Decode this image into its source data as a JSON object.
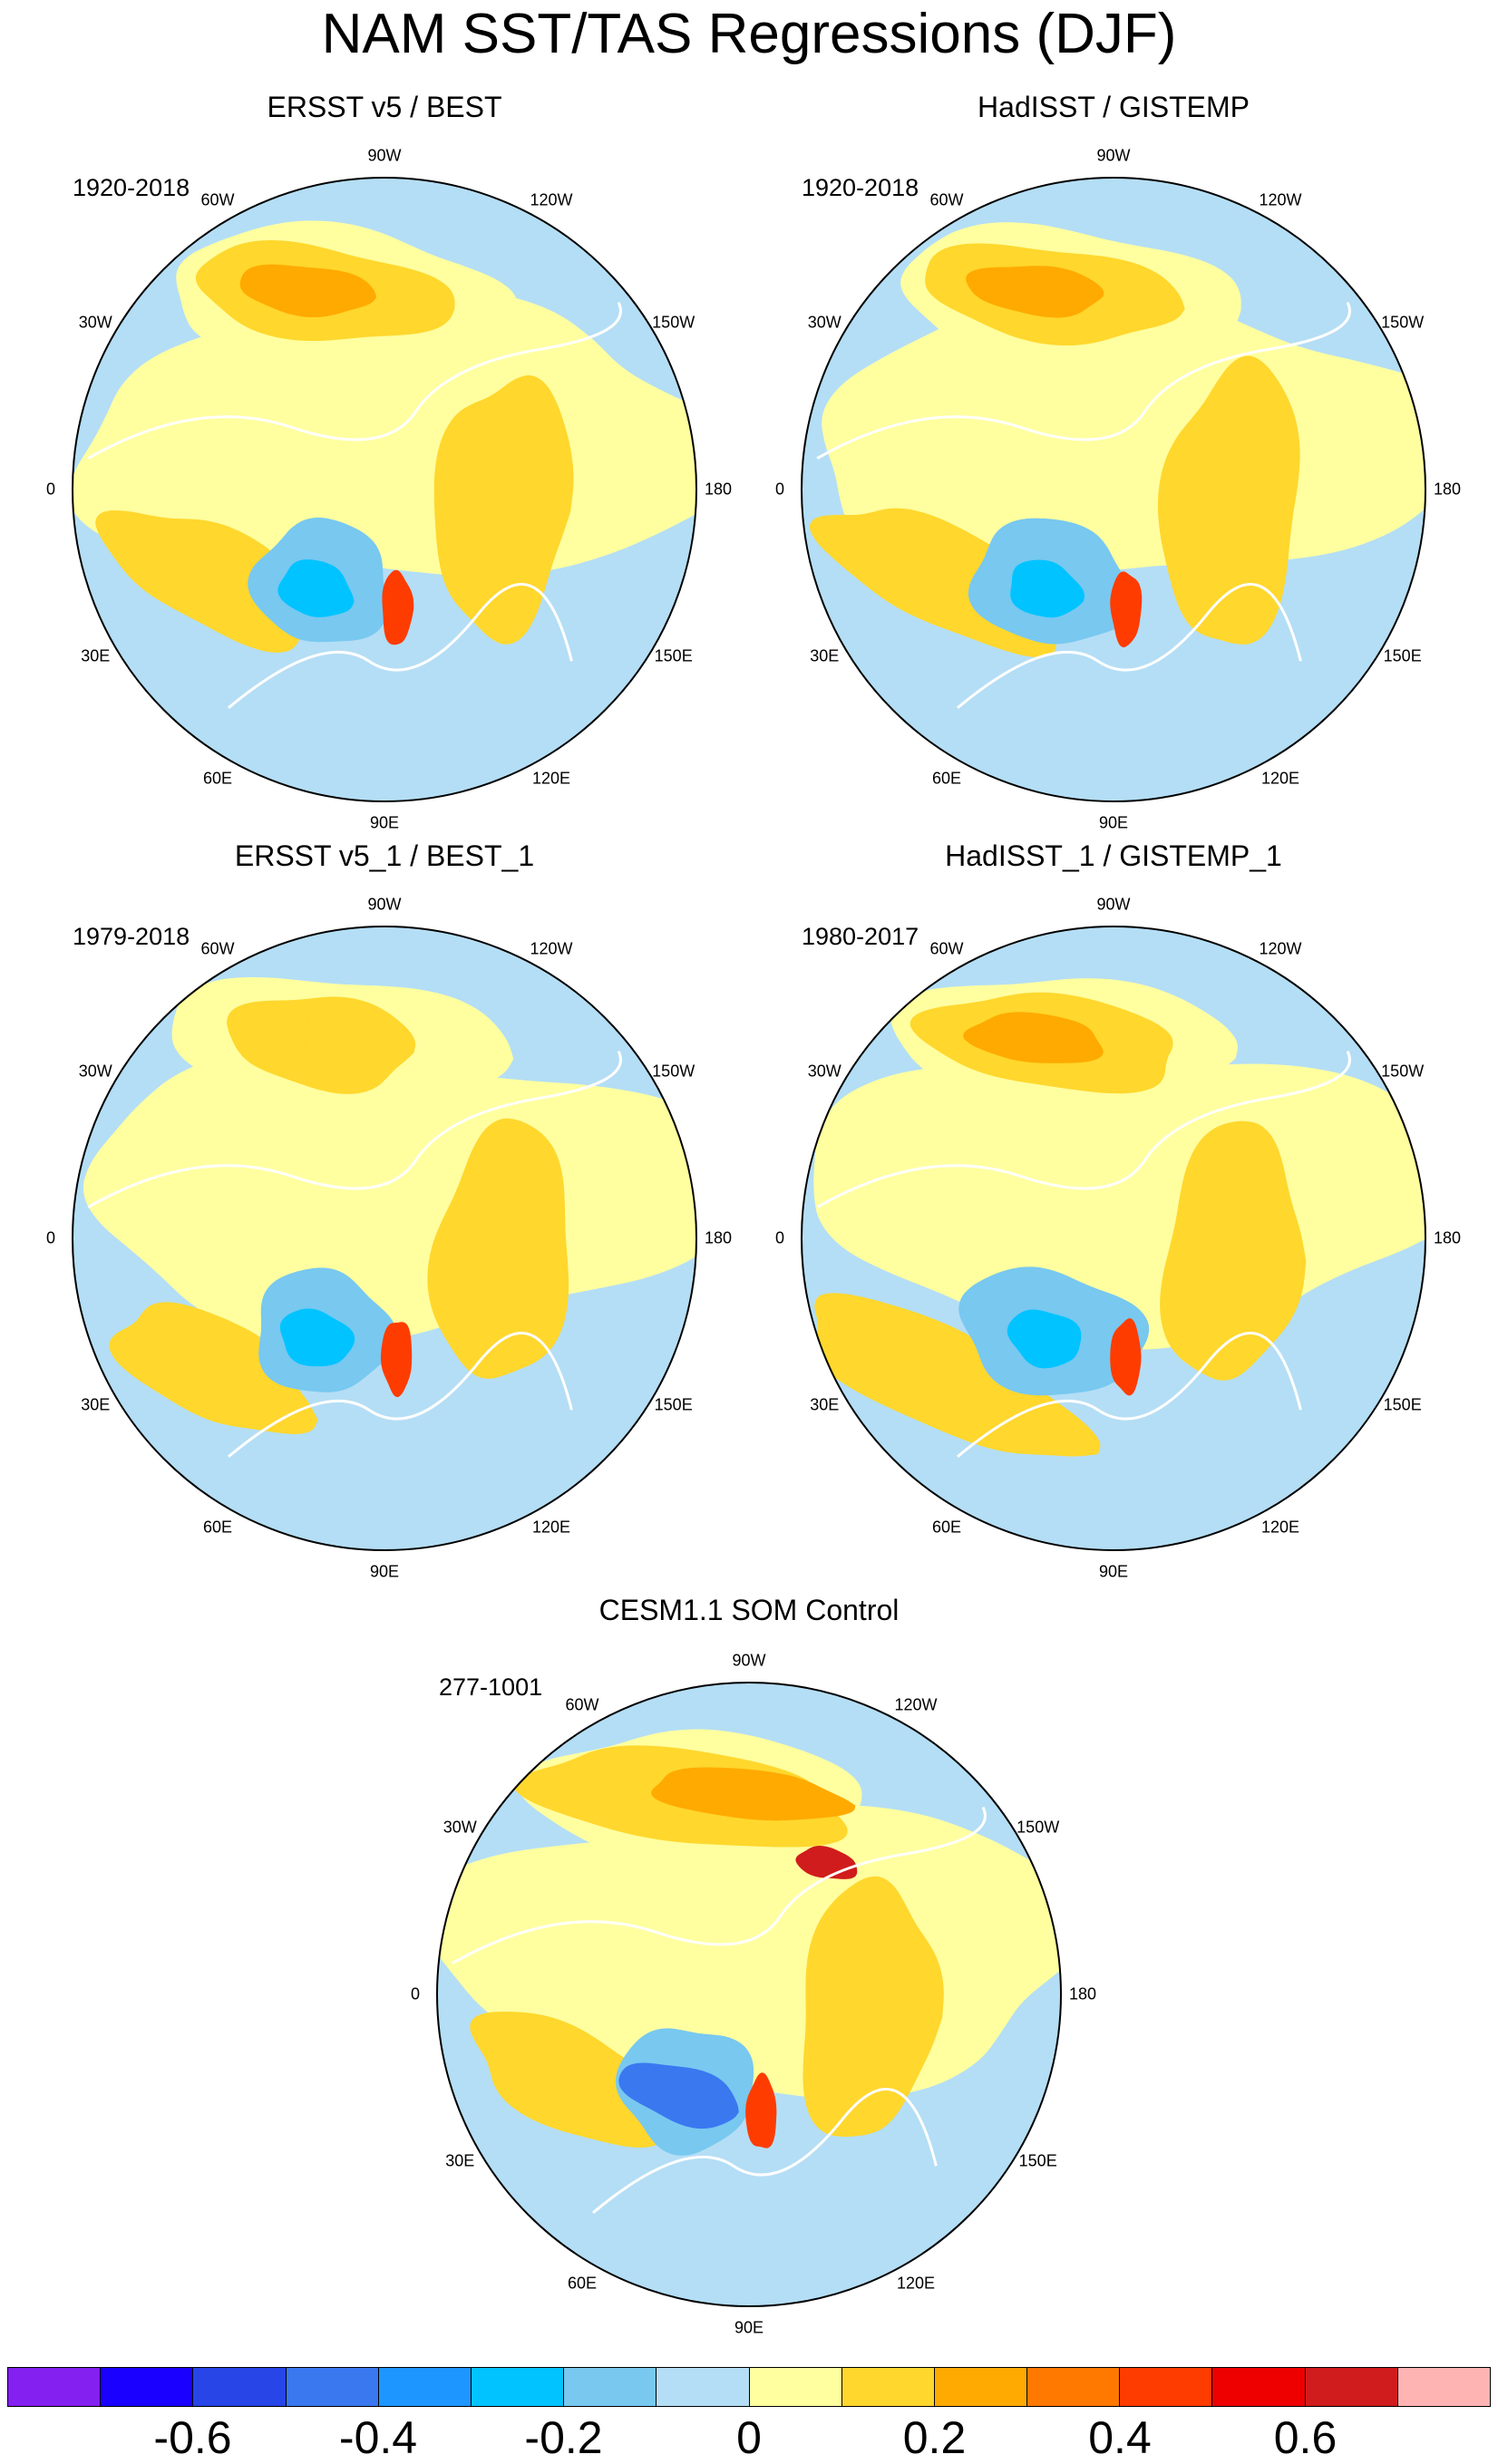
{
  "title": "NAM SST/TAS Regressions (DJF)",
  "lon_labels": [
    "180",
    "150E",
    "120E",
    "90E",
    "60E",
    "30E",
    "0",
    "30W",
    "60W",
    "90W",
    "120W",
    "150W"
  ],
  "panels": [
    {
      "title": "ERSST v5 / BEST",
      "period": "1920-2018",
      "variant": 0
    },
    {
      "title": "HadISST / GISTEMP",
      "period": "1920-2018",
      "variant": 1
    },
    {
      "title": "ERSST v5_1 / BEST_1",
      "period": "1979-2018",
      "variant": 2
    },
    {
      "title": "HadISST_1 / GISTEMP_1",
      "period": "1980-2017",
      "variant": 3
    },
    {
      "title": "CESM1.1 SOM Control",
      "period": "277-1001",
      "variant": 4
    }
  ],
  "colorbar": {
    "colors": [
      "#8420f0",
      "#1a00ff",
      "#2845e8",
      "#3a78f0",
      "#1e96ff",
      "#00c3ff",
      "#78c8f0",
      "#b4def5",
      "#ffffa0",
      "#ffd72d",
      "#ffaa00",
      "#ff7800",
      "#ff3c00",
      "#ee0000",
      "#d01c1c",
      "#ffb4b4"
    ],
    "tick_labels": [
      "-0.6",
      "-0.4",
      "-0.2",
      "0",
      "0.2",
      "0.4",
      "0.6"
    ],
    "tick_values": [
      -0.6,
      -0.4,
      -0.2,
      0,
      0.2,
      0.4,
      0.6
    ]
  }
}
